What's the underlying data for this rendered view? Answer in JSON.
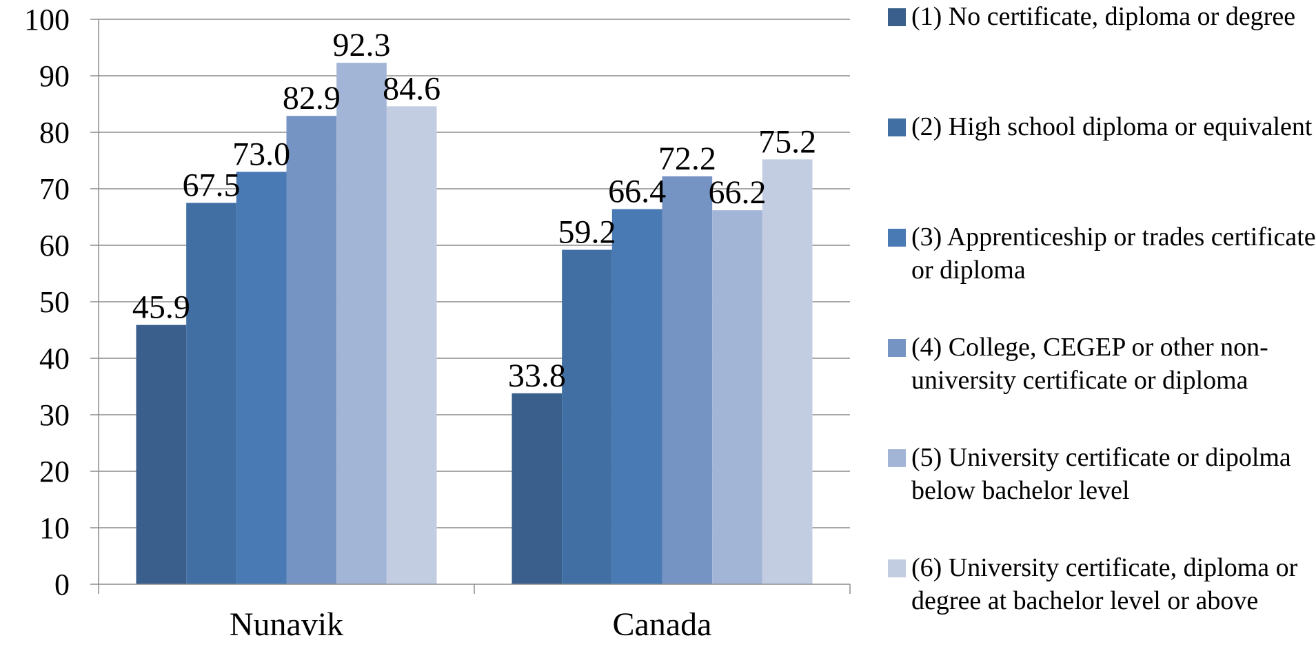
{
  "chart_data": {
    "type": "bar",
    "categories": [
      "Nunavik",
      "Canada"
    ],
    "series": [
      {
        "name": "(1) No certificate, diploma or degree",
        "color": "#3a5f8c",
        "values": [
          45.9,
          33.8
        ],
        "labels": [
          "45.9",
          "33.8"
        ]
      },
      {
        "name": "(2) High school diploma or equivalent",
        "color": "#416fa3",
        "values": [
          67.5,
          59.2
        ],
        "labels": [
          "67.5",
          "59.2"
        ]
      },
      {
        "name": "(3) Apprenticeship or trades certificate or diploma",
        "color": "#4a7ab4",
        "values": [
          73.0,
          66.4
        ],
        "labels": [
          "73.0",
          "66.4"
        ]
      },
      {
        "name": "(4) College, CEGEP or other non-university certificate or diploma",
        "color": "#7694c3",
        "values": [
          82.9,
          72.2
        ],
        "labels": [
          "82.9",
          "72.2"
        ]
      },
      {
        "name": "(5) University certificate or dipolma below bachelor level",
        "color": "#a3b5d6",
        "values": [
          92.3,
          66.2
        ],
        "labels": [
          "92.3",
          "66.2"
        ]
      },
      {
        "name": "(6) University certificate, diploma or degree at bachelor level or above",
        "color": "#c3cde2",
        "values": [
          84.6,
          75.2
        ],
        "labels": [
          "84.6",
          "75.2"
        ]
      }
    ],
    "ylim": [
      0,
      100
    ],
    "yticks": [
      0,
      10,
      20,
      30,
      40,
      50,
      60,
      70,
      80,
      90,
      100
    ],
    "grid": true,
    "legend": "right"
  }
}
